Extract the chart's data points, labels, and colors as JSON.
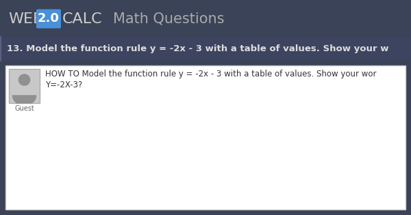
{
  "header_bg": "#3a4357",
  "header_text_web": "WEB",
  "header_text_20": "2.0",
  "header_text_calc": "CALC",
  "header_text_section": "Math Questions",
  "badge_bg": "#4a90d9",
  "question_bg": "#3d4460",
  "question_text": "13. Model the function rule y = -2x - 3 with a table of values. Show your w",
  "question_text_color": "#dddddd",
  "content_outer_bg": "#3a4357",
  "content_bg": "#ffffff",
  "content_border": "#cccccc",
  "avatar_bg": "#c8c8c8",
  "avatar_border": "#aaaaaa",
  "avatar_icon_color": "#909090",
  "guest_label": "Guest",
  "guest_label_color": "#666666",
  "comment_line1": "HOW TO Model the function rule y = -2x - 3 with a table of values. Show your wor",
  "comment_line2": "Y=-2X-3?",
  "comment_text_color": "#333333",
  "fig_width": 6.0,
  "fig_height": 3.15,
  "dpi": 100
}
